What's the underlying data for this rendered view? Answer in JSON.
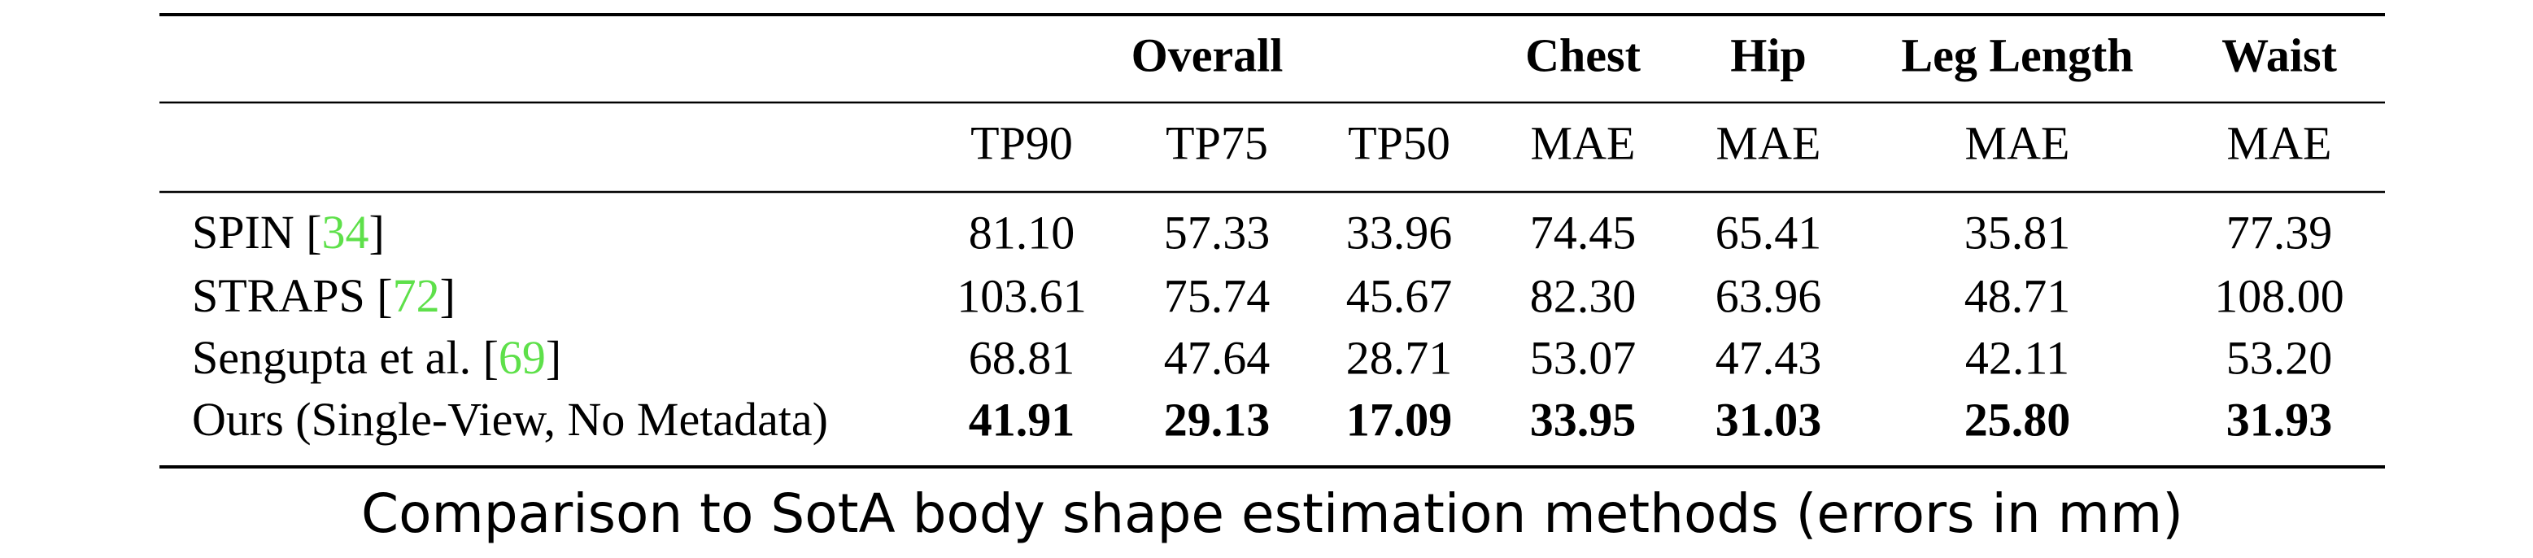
{
  "table": {
    "group_header": [
      "Overall",
      "Chest",
      "Hip",
      "Leg Length",
      "Waist"
    ],
    "columns": [
      "TP90",
      "TP75",
      "TP50",
      "MAE",
      "MAE",
      "MAE",
      "MAE"
    ],
    "rows": [
      {
        "prefix": "SPIN [",
        "ref": "34",
        "suffix": "]",
        "values": [
          "81.10",
          "57.33",
          "33.96",
          "74.45",
          "65.41",
          "35.81",
          "77.39"
        ],
        "bold": false
      },
      {
        "prefix": "STRAPS [",
        "ref": "72",
        "suffix": "]",
        "values": [
          "103.61",
          "75.74",
          "45.67",
          "82.30",
          "63.96",
          "48.71",
          "108.00"
        ],
        "bold": false
      },
      {
        "prefix": "Sengupta et al. [",
        "ref": "69",
        "suffix": "]",
        "values": [
          "68.81",
          "47.64",
          "28.71",
          "53.07",
          "47.43",
          "42.11",
          "53.20"
        ],
        "bold": false
      },
      {
        "prefix": "Ours (Single-View, No Metadata)",
        "values": [
          "41.91",
          "29.13",
          "17.09",
          "33.95",
          "31.03",
          "25.80",
          "31.93"
        ],
        "bold": true
      }
    ]
  },
  "caption": "Comparison to SotA body shape estimation methods (errors in mm)"
}
